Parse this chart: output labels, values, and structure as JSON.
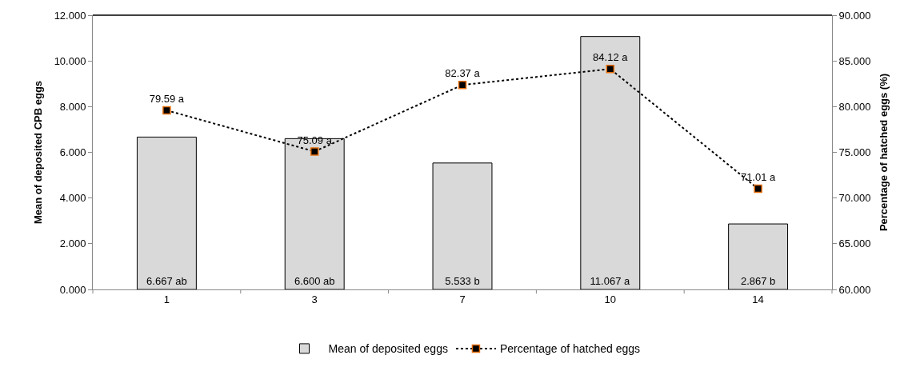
{
  "chart_data": {
    "type": "bar",
    "xlabel": null,
    "ylabel": "Mean of deposited CPB eggs",
    "y2label": "Percentage of hatched eggs (%)",
    "categories": [
      "1",
      "3",
      "7",
      "10",
      "14"
    ],
    "series": [
      {
        "name": "Mean of deposited eggs",
        "color": "#d9d9d9",
        "values": [
          6.667,
          6.6,
          5.533,
          11.067,
          2.867
        ],
        "value_labels": [
          "6.667 ab",
          "6.600 ab",
          "5.533 b",
          "11.067 a",
          "2.867 b"
        ]
      },
      {
        "name": "Percentage of hatched eggs",
        "type": "line",
        "axis": "y2",
        "color": "#000000",
        "values": [
          79.59,
          75.09,
          82.37,
          84.12,
          71.01
        ],
        "value_labels": [
          "79.59 a",
          "75.09 a",
          "82.37 a",
          "84.12 a",
          "71.01 a"
        ],
        "marker": "square",
        "line_style": "dotted"
      }
    ],
    "ylim": [
      0,
      12
    ],
    "yticks": [
      {
        "value": 0,
        "label": "0.000"
      },
      {
        "value": 2,
        "label": "2.000"
      },
      {
        "value": 4,
        "label": "4.000"
      },
      {
        "value": 6,
        "label": "6.000"
      },
      {
        "value": 8,
        "label": "8.000"
      },
      {
        "value": 10,
        "label": "10.000"
      },
      {
        "value": 12,
        "label": "12.000"
      }
    ],
    "y2lim": [
      60,
      90
    ],
    "y2ticks": [
      {
        "value": 60,
        "label": "60.000"
      },
      {
        "value": 65,
        "label": "65.000"
      },
      {
        "value": 70,
        "label": "70.000"
      },
      {
        "value": 75,
        "label": "75.000"
      },
      {
        "value": 80,
        "label": "80.000"
      },
      {
        "value": 85,
        "label": "85.000"
      },
      {
        "value": 90,
        "label": "90.000"
      }
    ],
    "grid": false,
    "legend": "bottom"
  }
}
